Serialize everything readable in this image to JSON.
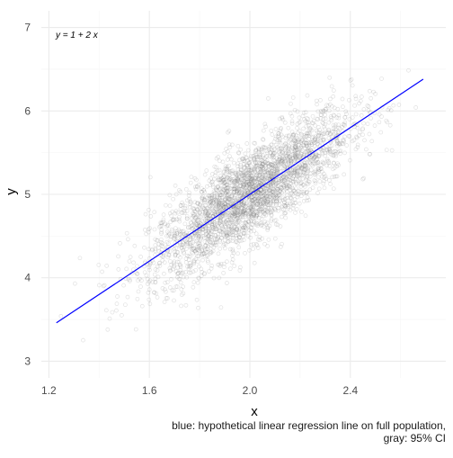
{
  "chart_data": {
    "type": "scatter",
    "title": "",
    "xlabel": "x",
    "ylabel": "y",
    "xlim": [
      1.17,
      2.78
    ],
    "ylim": [
      2.8,
      7.2
    ],
    "x_ticks": [
      1.2,
      1.6,
      2.0,
      2.4
    ],
    "y_ticks": [
      3,
      4,
      5,
      6,
      7
    ],
    "x_tick_labels": [
      "1.2",
      "1.6",
      "2.0",
      "2.4"
    ],
    "y_tick_labels": [
      "3",
      "4",
      "5",
      "6",
      "7"
    ],
    "grid": true,
    "legend": "none",
    "annotation": "y = 1 + 2 x",
    "point_count": 3000,
    "point_color": "#777777",
    "points": {
      "x_mean": 2.0,
      "x_sd": 0.2,
      "y_intercept": 1,
      "y_slope": 2,
      "noise_sd": 0.28
    },
    "series": [
      {
        "type": "line",
        "color": "#0000ff",
        "x": [
          1.23,
          2.69
        ],
        "y": [
          3.46,
          6.38
        ]
      }
    ],
    "caption_lines": [
      "blue: hypothetical linear regression line on full population,",
      "gray: 95% CI"
    ]
  },
  "colors": {
    "grid_major": "#ebebeb",
    "grid_minor": "#f5f5f5",
    "tick_label": "#4d4d4d",
    "axis_title": "#000000",
    "line": "#0000ff"
  }
}
